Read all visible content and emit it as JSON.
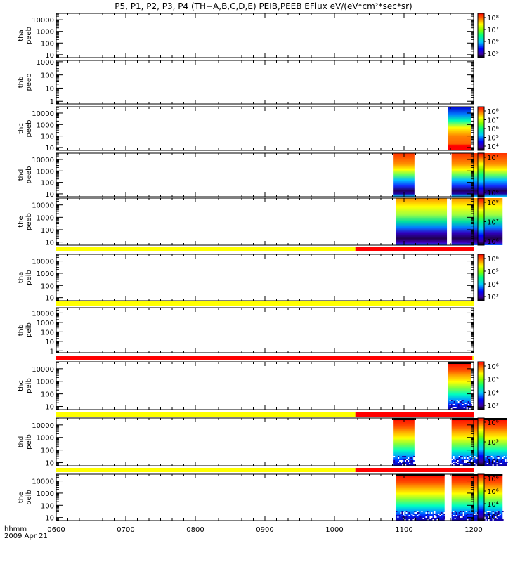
{
  "title": "P5, P1, P2, P3, P4 (TH−A,B,C,D,E) PEIB,PEEB EFlux eV/(eV*cm²*sec*sr)",
  "footer": {
    "time_label": "hhmm",
    "date_label": "2009 Apr 21"
  },
  "colors": {
    "yellow_bar": "#ffff00",
    "red_bar": "#ff0000",
    "black_bar": "#000000"
  },
  "chart_data": {
    "type": "heatmap",
    "x_ticks": [
      "0600",
      "0700",
      "0800",
      "0900",
      "1000",
      "1100",
      "1200"
    ],
    "x_range_hours": [
      6.0,
      12.0
    ],
    "panels": [
      {
        "id": "tha-peeb",
        "ylabel": [
          "tha",
          "peeb"
        ],
        "yticks": [
          "10000",
          "1000",
          "100",
          "10"
        ],
        "ylog": [
          0.75,
          4.55
        ],
        "colorbar": {
          "show": true,
          "ticks": [
            "10⁸",
            "10⁷",
            "10⁶",
            "10⁵"
          ]
        },
        "data_blocks": []
      },
      {
        "id": "thb-peeb",
        "ylabel": [
          "thb",
          "peeb"
        ],
        "yticks": [
          "1000",
          "100",
          "10",
          "1"
        ],
        "ylog": [
          -0.2,
          3.1
        ],
        "colorbar": {
          "show": false,
          "ticks": []
        },
        "data_blocks": []
      },
      {
        "id": "thc-peeb",
        "ylabel": [
          "thc",
          "peeb"
        ],
        "yticks": [
          "10000",
          "1000",
          "100",
          "10"
        ],
        "ylog": [
          0.75,
          4.55
        ],
        "colorbar": {
          "show": true,
          "ticks": [
            "10⁸",
            "10⁷",
            "10⁶",
            "10⁵",
            "10⁴"
          ]
        },
        "data_blocks": [
          {
            "start": "1138",
            "end": "1158",
            "style": "thc-peeb"
          }
        ]
      },
      {
        "id": "thd-peeb",
        "ylabel": [
          "thd",
          "peeb"
        ],
        "yticks": [
          "10000",
          "1000",
          "100",
          "10"
        ],
        "ylog": [
          0.75,
          4.55
        ],
        "colorbar": {
          "show": true,
          "ticks": [
            "10⁷",
            "10⁶"
          ]
        },
        "data_blocks": [
          {
            "start": "1051",
            "end": "1109",
            "style": "ee-thd"
          },
          {
            "start": "1141",
            "end": "1189",
            "style": "ee-thd"
          }
        ]
      },
      {
        "id": "the-peeb",
        "ylabel": [
          "the",
          "peeb"
        ],
        "yticks": [
          "10000",
          "1000",
          "100",
          "10"
        ],
        "ylog": [
          0.75,
          4.55
        ],
        "colorbar": {
          "show": true,
          "ticks": [
            "10⁸",
            "10⁷",
            "10⁶"
          ]
        },
        "data_blocks": [
          {
            "start": "1053",
            "end": "1097",
            "style": "ee-the"
          },
          {
            "start": "1141",
            "end": "1185",
            "style": "ee-the"
          }
        ]
      },
      {
        "id": "tha-peib",
        "ylabel": [
          "tha",
          "peib"
        ],
        "yticks": [
          "10000",
          "1000",
          "100",
          "10"
        ],
        "ylog": [
          0.75,
          4.55
        ],
        "colorbar": {
          "show": true,
          "ticks": [
            "10⁶",
            "10⁵",
            "10⁴",
            "10³"
          ]
        },
        "data_blocks": []
      },
      {
        "id": "thb-peib",
        "ylabel": [
          "thb",
          "peib"
        ],
        "yticks": [
          "10000",
          "1000",
          "100",
          "10",
          "1"
        ],
        "ylog": [
          -0.2,
          4.55
        ],
        "colorbar": {
          "show": false,
          "ticks": []
        },
        "data_blocks": []
      },
      {
        "id": "thc-peib",
        "ylabel": [
          "thc",
          "peib"
        ],
        "yticks": [
          "10000",
          "1000",
          "100",
          "10"
        ],
        "ylog": [
          0.75,
          4.55
        ],
        "colorbar": {
          "show": true,
          "ticks": [
            "10⁶",
            "10⁵",
            "10⁴",
            "10³"
          ]
        },
        "data_blocks": [
          {
            "start": "1138",
            "end": "1158",
            "style": "ei"
          }
        ]
      },
      {
        "id": "thd-peib",
        "ylabel": [
          "thd",
          "peib"
        ],
        "yticks": [
          "10000",
          "1000",
          "100",
          "10"
        ],
        "ylog": [
          0.75,
          4.55
        ],
        "colorbar": {
          "show": true,
          "ticks": [
            "10⁶",
            "10⁵",
            "10⁴"
          ]
        },
        "data_blocks": [
          {
            "start": "1051",
            "end": "1109",
            "style": "ei"
          },
          {
            "start": "1141",
            "end": "1189",
            "style": "ei"
          }
        ]
      },
      {
        "id": "the-peib",
        "ylabel": [
          "the",
          "peib"
        ],
        "yticks": [
          "10000",
          "1000",
          "100",
          "10"
        ],
        "ylog": [
          0.75,
          4.55
        ],
        "colorbar": {
          "show": true,
          "ticks": [
            "10⁶",
            "10⁶",
            "10⁴",
            "10³"
          ]
        },
        "data_blocks": [
          {
            "start": "1053",
            "end": "1095",
            "style": "ei"
          },
          {
            "start": "1141",
            "end": "1185",
            "style": "ei"
          }
        ]
      }
    ],
    "mode_bars": [
      {
        "after_panel": "the-peeb",
        "segments": [
          {
            "start": "0600",
            "end": "1018",
            "color": "yellow"
          },
          {
            "start": "1018",
            "end": "1200",
            "color": "red"
          }
        ]
      },
      {
        "after_panel": "tha-peib",
        "segments": [
          {
            "start": "0600",
            "end": "1200",
            "color": "yellow"
          }
        ]
      },
      {
        "after_panel": "thb-peib",
        "segments": [
          {
            "start": "0600",
            "end": "1159",
            "color": "red"
          },
          {
            "start": "1159",
            "end": "1200",
            "color": "yellow"
          }
        ]
      },
      {
        "after_panel": "thc-peib",
        "segments": [
          {
            "start": "0600",
            "end": "1018",
            "color": "yellow"
          },
          {
            "start": "1018",
            "end": "1200",
            "color": "red"
          }
        ]
      },
      {
        "after_panel": "thd-peib",
        "segments": [
          {
            "start": "0600",
            "end": "1018",
            "color": "yellow"
          },
          {
            "start": "1018",
            "end": "1200",
            "color": "red"
          }
        ]
      }
    ]
  }
}
